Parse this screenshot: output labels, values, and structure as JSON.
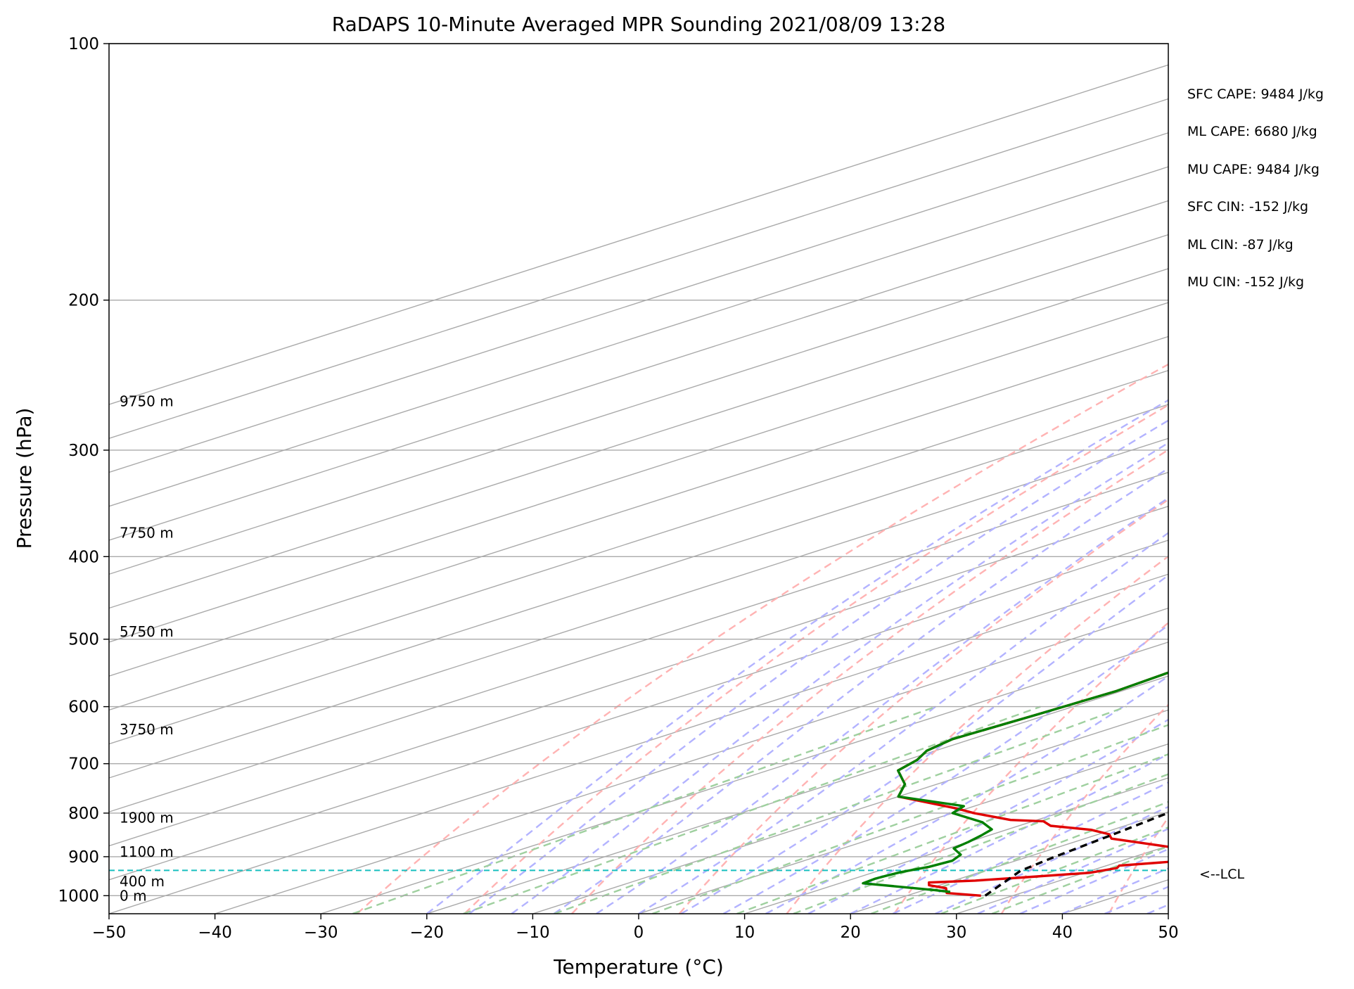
{
  "chart_data": {
    "type": "skew-t",
    "title": "RaDAPS 10-Minute Averaged MPR Sounding 2021/08/09 13:28",
    "xlabel": "Temperature (°C)",
    "ylabel": "Pressure (hPa)",
    "xlim": [
      -50,
      50
    ],
    "ylim": [
      1050,
      100
    ],
    "log_y": true,
    "grid": true,
    "x_ticks": [
      {
        "v": -50,
        "label": "−50"
      },
      {
        "v": -40,
        "label": "−40"
      },
      {
        "v": -30,
        "label": "−30"
      },
      {
        "v": -20,
        "label": "−20"
      },
      {
        "v": -10,
        "label": "−10"
      },
      {
        "v": 0,
        "label": "0"
      },
      {
        "v": 10,
        "label": "10"
      },
      {
        "v": 20,
        "label": "20"
      },
      {
        "v": 30,
        "label": "30"
      },
      {
        "v": 40,
        "label": "40"
      },
      {
        "v": 50,
        "label": "50"
      }
    ],
    "y_ticks": [
      {
        "v": 100,
        "label": "100"
      },
      {
        "v": 200,
        "label": "200"
      },
      {
        "v": 300,
        "label": "300"
      },
      {
        "v": 400,
        "label": "400"
      },
      {
        "v": 500,
        "label": "500"
      },
      {
        "v": 600,
        "label": "600"
      },
      {
        "v": 700,
        "label": "700"
      },
      {
        "v": 800,
        "label": "800"
      },
      {
        "v": 900,
        "label": "900"
      },
      {
        "v": 1000,
        "label": "1000"
      }
    ],
    "height_labels": [
      {
        "p": 1000,
        "label": "0 m"
      },
      {
        "p": 962,
        "label": "400 m"
      },
      {
        "p": 888,
        "label": "1100 m"
      },
      {
        "p": 810,
        "label": "1900 m"
      },
      {
        "p": 638,
        "label": "3750 m"
      },
      {
        "p": 490,
        "label": "5750 m"
      },
      {
        "p": 375,
        "label": "7750 m"
      },
      {
        "p": 263,
        "label": "9750 m"
      }
    ],
    "temperature": {
      "color": "#e00000",
      "points": [
        {
          "p": 1000,
          "t": 27.0
        },
        {
          "p": 993,
          "t": 23.0
        },
        {
          "p": 980,
          "t": 21.5
        },
        {
          "p": 972,
          "t": 19.0
        },
        {
          "p": 965,
          "t": 18.2
        },
        {
          "p": 960,
          "t": 22.0
        },
        {
          "p": 952,
          "t": 25.5
        },
        {
          "p": 940,
          "t": 30.5
        },
        {
          "p": 928,
          "t": 31.7
        },
        {
          "p": 922,
          "t": 31.2
        },
        {
          "p": 912,
          "t": 35.0
        },
        {
          "p": 898,
          "t": 34.0
        },
        {
          "p": 878,
          "t": 31.0
        },
        {
          "p": 857,
          "t": 22.5
        },
        {
          "p": 847,
          "t": 21.0
        },
        {
          "p": 837,
          "t": 18.0
        },
        {
          "p": 828,
          "t": 13.0
        },
        {
          "p": 818,
          "t": 11.0
        },
        {
          "p": 815,
          "t": 7.5
        },
        {
          "p": 800,
          "t": 2.0
        },
        {
          "p": 790,
          "t": -1.0
        },
        {
          "p": 765,
          "t": -10.0
        },
        {
          "p": 740,
          "t": -13.0
        },
        {
          "p": 713,
          "t": -17.7
        },
        {
          "p": 693,
          "t": -19.0
        },
        {
          "p": 676,
          "t": -20.8
        },
        {
          "p": 655,
          "t": -21.8
        },
        {
          "p": 610,
          "t": -21.0
        },
        {
          "p": 575,
          "t": -20.5
        },
        {
          "p": 548,
          "t": -21.0
        },
        {
          "p": 525,
          "t": -20.5
        },
        {
          "p": 490,
          "t": -20.6
        },
        {
          "p": 460,
          "t": -21.0
        },
        {
          "p": 420,
          "t": -21.8
        },
        {
          "p": 400,
          "t": -21.6
        },
        {
          "p": 373,
          "t": -21.6
        },
        {
          "p": 350,
          "t": -21.2
        },
        {
          "p": 330,
          "t": -21.6
        },
        {
          "p": 305,
          "t": -21.3
        },
        {
          "p": 285,
          "t": -21.4
        },
        {
          "p": 273,
          "t": -21.0
        },
        {
          "p": 265,
          "t": -20.3
        },
        {
          "p": 257,
          "t": -19.6
        },
        {
          "p": 249,
          "t": -20.0
        }
      ]
    },
    "dewpoint": {
      "color": "#008000",
      "points": [
        {
          "p": 990,
          "t": 23.0
        },
        {
          "p": 985,
          "t": 21.0
        },
        {
          "p": 967,
          "t": 12.2
        },
        {
          "p": 955,
          "t": 12.0
        },
        {
          "p": 947,
          "t": 12.2
        },
        {
          "p": 938,
          "t": 12.5
        },
        {
          "p": 925,
          "t": 13.6
        },
        {
          "p": 910,
          "t": 14.0
        },
        {
          "p": 895,
          "t": 13.0
        },
        {
          "p": 880,
          "t": 10.5
        },
        {
          "p": 865,
          "t": 10.0
        },
        {
          "p": 850,
          "t": 9.3
        },
        {
          "p": 836,
          "t": 8.5
        },
        {
          "p": 820,
          "t": 5.5
        },
        {
          "p": 800,
          "t": 0.0
        },
        {
          "p": 785,
          "t": -1.0
        },
        {
          "p": 765,
          "t": -10.0
        },
        {
          "p": 740,
          "t": -13.0
        },
        {
          "p": 713,
          "t": -17.7
        },
        {
          "p": 693,
          "t": -19.0
        },
        {
          "p": 676,
          "t": -20.8
        },
        {
          "p": 655,
          "t": -21.8
        },
        {
          "p": 610,
          "t": -21.0
        },
        {
          "p": 575,
          "t": -20.5
        },
        {
          "p": 548,
          "t": -21.0
        },
        {
          "p": 525,
          "t": -20.5
        },
        {
          "p": 490,
          "t": -20.6
        },
        {
          "p": 460,
          "t": -21.0
        },
        {
          "p": 420,
          "t": -21.8
        },
        {
          "p": 400,
          "t": -21.6
        },
        {
          "p": 373,
          "t": -21.6
        },
        {
          "p": 350,
          "t": -21.2
        },
        {
          "p": 330,
          "t": -21.6
        },
        {
          "p": 305,
          "t": -21.3
        },
        {
          "p": 285,
          "t": -21.4
        },
        {
          "p": 273,
          "t": -21.0
        },
        {
          "p": 265,
          "t": -20.3
        },
        {
          "p": 263,
          "t": -30.0
        },
        {
          "p": 249,
          "t": -20.0
        }
      ]
    },
    "parcel": {
      "color": "#000000",
      "style": "dashed",
      "points": [
        {
          "p": 1000,
          "t": 27.4
        },
        {
          "p": 935,
          "t": 23.4
        },
        {
          "p": 900,
          "t": 22.5
        },
        {
          "p": 850,
          "t": 21.5
        },
        {
          "p": 800,
          "t": 20.3
        },
        {
          "p": 700,
          "t": 16.7
        },
        {
          "p": 600,
          "t": 11.8
        },
        {
          "p": 500,
          "t": 5.1
        },
        {
          "p": 400,
          "t": -4.2
        },
        {
          "p": 350,
          "t": -10.1
        },
        {
          "p": 300,
          "t": -17.2
        },
        {
          "p": 250,
          "t": -26.3
        }
      ]
    },
    "lcl": {
      "p": 934,
      "label": "<--LCL",
      "color": "#17bfbf"
    },
    "reference_lines": {
      "isotherm_color": "#aaaaaa",
      "dry_adiabat_color": "#ffb3b3",
      "moist_adiabat_color": "#b3b3ff",
      "mixing_ratio_color": "#9fd09f"
    },
    "indices": {
      "sfc_cape": "SFC CAPE: 9484 J/kg",
      "ml_cape": "ML CAPE: 6680 J/kg",
      "mu_cape": "MU CAPE: 9484 J/kg",
      "sfc_cin": "SFC CIN: -152 J/kg",
      "ml_cin": "ML CIN: -87 J/kg",
      "mu_cin": "MU CIN: -152 J/kg"
    }
  }
}
